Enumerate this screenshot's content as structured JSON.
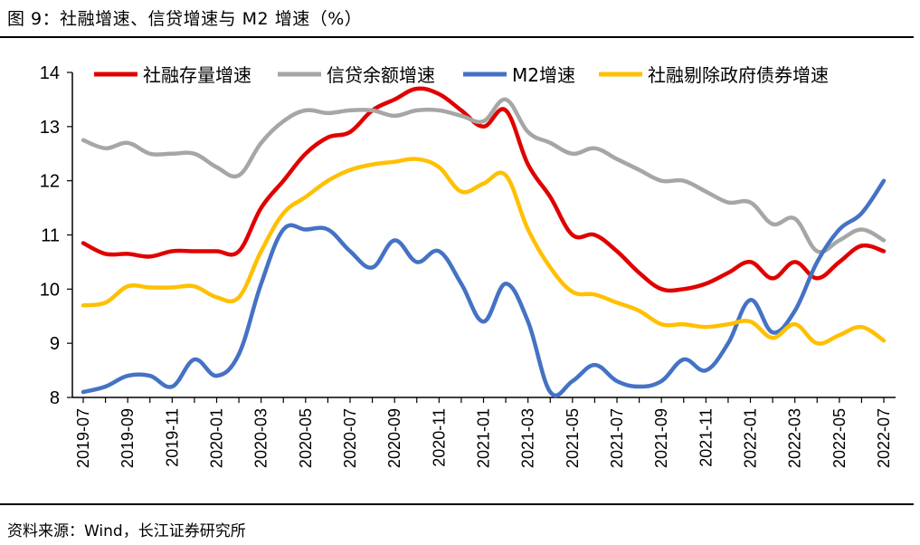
{
  "figure_title": "图 9：社融增速、信贷增速与 M2 增速（%）",
  "source_note": "资料来源：Wind，长江证券研究所",
  "chart_data": {
    "type": "line",
    "title": "社融增速、信贷增速与 M2 增速（%）",
    "xlabel": "",
    "ylabel": "%",
    "ylim": [
      8,
      14
    ],
    "yticks": [
      8,
      9,
      10,
      11,
      12,
      13,
      14
    ],
    "grid": false,
    "legend_position": "top",
    "x": [
      "2019-07",
      "2019-08",
      "2019-09",
      "2019-10",
      "2019-11",
      "2019-12",
      "2020-01",
      "2020-02",
      "2020-03",
      "2020-04",
      "2020-05",
      "2020-06",
      "2020-07",
      "2020-08",
      "2020-09",
      "2020-10",
      "2020-11",
      "2020-12",
      "2021-01",
      "2021-02",
      "2021-03",
      "2021-04",
      "2021-05",
      "2021-06",
      "2021-07",
      "2021-08",
      "2021-09",
      "2021-10",
      "2021-11",
      "2021-12",
      "2022-01",
      "2022-02",
      "2022-03",
      "2022-04",
      "2022-05",
      "2022-06",
      "2022-07"
    ],
    "xtick_labels": [
      "2019-07",
      "2019-09",
      "2019-11",
      "2020-01",
      "2020-03",
      "2020-05",
      "2020-07",
      "2020-09",
      "2020-11",
      "2021-01",
      "2021-03",
      "2021-05",
      "2021-07",
      "2021-09",
      "2021-11",
      "2022-01",
      "2022-03",
      "2022-05",
      "2022-07"
    ],
    "series": [
      {
        "name": "社融存量增速",
        "color": "#e00000",
        "values": [
          10.85,
          10.65,
          10.65,
          10.6,
          10.7,
          10.7,
          10.7,
          10.7,
          11.5,
          12.0,
          12.5,
          12.8,
          12.9,
          13.3,
          13.5,
          13.7,
          13.6,
          13.3,
          13.0,
          13.3,
          12.3,
          11.7,
          11.0,
          11.0,
          10.7,
          10.3,
          10.0,
          10.0,
          10.1,
          10.3,
          10.5,
          10.2,
          10.5,
          10.2,
          10.5,
          10.8,
          10.7
        ]
      },
      {
        "name": "信贷余额增速",
        "color": "#a6a6a6",
        "values": [
          12.75,
          12.6,
          12.7,
          12.5,
          12.5,
          12.5,
          12.25,
          12.1,
          12.7,
          13.1,
          13.3,
          13.25,
          13.3,
          13.3,
          13.2,
          13.3,
          13.3,
          13.2,
          13.1,
          13.5,
          12.9,
          12.7,
          12.5,
          12.6,
          12.4,
          12.2,
          12.0,
          12.0,
          11.8,
          11.6,
          11.6,
          11.2,
          11.3,
          10.7,
          10.9,
          11.1,
          10.9
        ]
      },
      {
        "name": "M2增速",
        "color": "#4472c4",
        "values": [
          8.1,
          8.2,
          8.4,
          8.4,
          8.2,
          8.7,
          8.4,
          8.8,
          10.1,
          11.1,
          11.1,
          11.1,
          10.7,
          10.4,
          10.9,
          10.5,
          10.7,
          10.1,
          9.4,
          10.1,
          9.4,
          8.1,
          8.3,
          8.6,
          8.3,
          8.2,
          8.3,
          8.7,
          8.5,
          9.0,
          9.8,
          9.2,
          9.6,
          10.5,
          11.1,
          11.4,
          12.0
        ]
      },
      {
        "name": "社融剔除政府债券增速",
        "color": "#ffc000",
        "values": [
          9.7,
          9.75,
          10.05,
          10.03,
          10.03,
          10.05,
          9.85,
          9.85,
          10.7,
          11.4,
          11.7,
          12.0,
          12.2,
          12.3,
          12.35,
          12.4,
          12.25,
          11.8,
          11.95,
          12.1,
          11.1,
          10.4,
          9.95,
          9.9,
          9.75,
          9.6,
          9.35,
          9.35,
          9.3,
          9.35,
          9.4,
          9.1,
          9.35,
          9.0,
          9.15,
          9.3,
          9.05
        ]
      }
    ]
  }
}
